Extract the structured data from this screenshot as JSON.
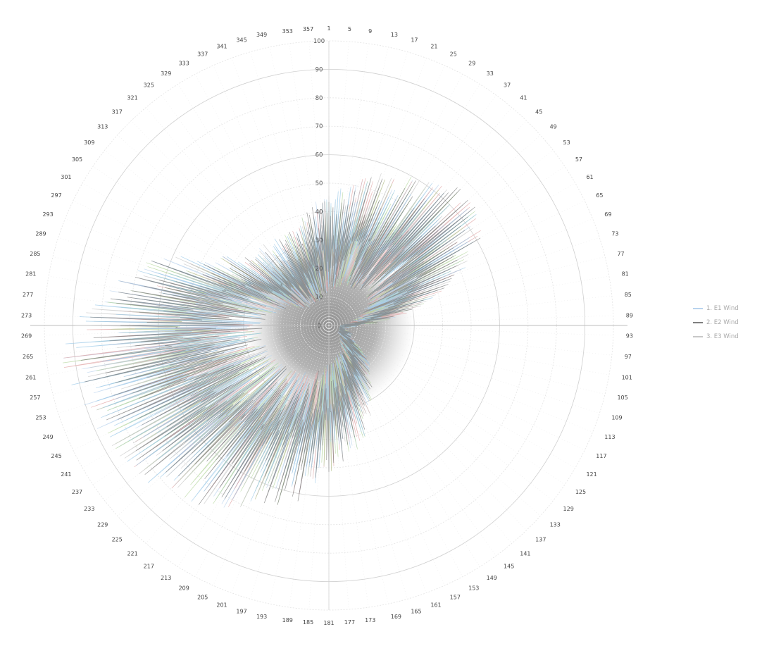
{
  "chart_data": {
    "type": "radar",
    "radial_axis": {
      "ticks": [
        "0",
        "10",
        "20",
        "30",
        "40",
        "50",
        "60",
        "70",
        "80",
        "90",
        "100"
      ],
      "range": [
        0,
        100
      ]
    },
    "angular_axis": {
      "labels": [
        "1",
        "5",
        "9",
        "13",
        "17",
        "21",
        "25",
        "29",
        "33",
        "37",
        "41",
        "45",
        "49",
        "53",
        "57",
        "61",
        "65",
        "69",
        "73",
        "77",
        "81",
        "85",
        "89",
        "93",
        "97",
        "101",
        "105",
        "109",
        "113",
        "117",
        "121",
        "125",
        "129",
        "133",
        "137",
        "141",
        "145",
        "149",
        "153",
        "157",
        "161",
        "165",
        "169",
        "173",
        "177",
        "181",
        "185",
        "189",
        "193",
        "197",
        "201",
        "205",
        "209",
        "213",
        "217",
        "221",
        "225",
        "229",
        "233",
        "237",
        "241",
        "245",
        "249",
        "253",
        "257",
        "261",
        "265",
        "269",
        "273",
        "277",
        "281",
        "285",
        "289",
        "293",
        "297",
        "301",
        "305",
        "309",
        "313",
        "317",
        "321",
        "325",
        "329",
        "333",
        "337",
        "341",
        "345",
        "349",
        "353",
        "357"
      ],
      "direction": "clockwise",
      "start": "top"
    },
    "legend": {
      "position": "right"
    },
    "series": [
      {
        "name": "1. E1 Wind",
        "color": "#b9d3ee"
      },
      {
        "name": "2. E2 Wind",
        "color": "#7f7f7f"
      },
      {
        "name": "3. E3 Wind",
        "color": "#c8c8c8"
      }
    ],
    "envelope": {
      "angles_deg": [
        0,
        10,
        20,
        30,
        40,
        50,
        60,
        70,
        80,
        90,
        100,
        110,
        120,
        130,
        140,
        150,
        160,
        170,
        180,
        190,
        200,
        210,
        220,
        230,
        240,
        250,
        260,
        270,
        280,
        290,
        300,
        310,
        320,
        330,
        340,
        350
      ],
      "values": [
        46,
        51,
        58,
        60,
        66,
        68,
        63,
        48,
        30,
        12,
        5,
        9,
        10,
        18,
        23,
        30,
        40,
        47,
        52,
        63,
        68,
        75,
        80,
        85,
        88,
        92,
        95,
        93,
        80,
        67,
        48,
        37,
        37,
        36,
        36,
        43
      ]
    }
  }
}
